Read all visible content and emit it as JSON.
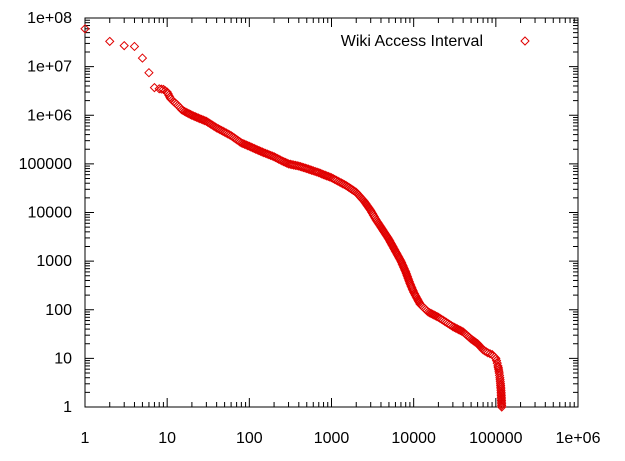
{
  "chart_data": {
    "type": "scatter",
    "title": "",
    "xlabel": "",
    "ylabel": "",
    "xscale": "log",
    "yscale": "log",
    "xlim": [
      1,
      1000000
    ],
    "ylim": [
      1,
      100000000
    ],
    "grid": false,
    "legend_position": "top-right",
    "x_ticks": [
      {
        "value": 1,
        "label": "1"
      },
      {
        "value": 10,
        "label": "10"
      },
      {
        "value": 100,
        "label": "100"
      },
      {
        "value": 1000,
        "label": "1000"
      },
      {
        "value": 10000,
        "label": "10000"
      },
      {
        "value": 100000,
        "label": "100000"
      },
      {
        "value": 1000000,
        "label": "1e+06"
      }
    ],
    "y_ticks": [
      {
        "value": 1,
        "label": "1"
      },
      {
        "value": 10,
        "label": "10"
      },
      {
        "value": 100,
        "label": "100"
      },
      {
        "value": 1000,
        "label": "1000"
      },
      {
        "value": 10000,
        "label": "10000"
      },
      {
        "value": 100000,
        "label": "100000"
      },
      {
        "value": 1000000,
        "label": "1e+06"
      },
      {
        "value": 10000000,
        "label": "1e+07"
      },
      {
        "value": 100000000,
        "label": "1e+08"
      }
    ],
    "series": [
      {
        "name": "Wiki Access Interval",
        "marker": "diamond-open",
        "color": "#e00000",
        "points": [
          [
            1,
            60000000
          ],
          [
            2,
            33000000
          ],
          [
            3,
            27000000
          ],
          [
            4,
            26000000
          ],
          [
            5,
            15000000
          ],
          [
            6,
            7500000
          ],
          [
            7,
            3700000
          ],
          [
            8,
            3500000
          ],
          [
            9,
            3400000
          ],
          [
            10,
            3000000
          ],
          [
            11,
            2200000
          ],
          [
            12,
            1900000
          ],
          [
            13,
            1700000
          ],
          [
            14,
            1500000
          ],
          [
            15,
            1300000
          ],
          [
            17,
            1150000
          ],
          [
            20,
            1000000
          ],
          [
            25,
            850000
          ],
          [
            30,
            750000
          ],
          [
            40,
            550000
          ],
          [
            50,
            450000
          ],
          [
            60,
            380000
          ],
          [
            80,
            270000
          ],
          [
            100,
            230000
          ],
          [
            120,
            200000
          ],
          [
            150,
            170000
          ],
          [
            200,
            140000
          ],
          [
            250,
            115000
          ],
          [
            300,
            100000
          ],
          [
            400,
            90000
          ],
          [
            500,
            80000
          ],
          [
            600,
            72000
          ],
          [
            700,
            66000
          ],
          [
            800,
            60000
          ],
          [
            1000,
            52000
          ],
          [
            1200,
            44000
          ],
          [
            1500,
            36000
          ],
          [
            2000,
            26000
          ],
          [
            2500,
            17000
          ],
          [
            3000,
            11000
          ],
          [
            3500,
            7000
          ],
          [
            4000,
            5000
          ],
          [
            5000,
            2800
          ],
          [
            6000,
            1600
          ],
          [
            7000,
            1000
          ],
          [
            8000,
            600
          ],
          [
            9000,
            350
          ],
          [
            10000,
            230
          ],
          [
            11000,
            170
          ],
          [
            12000,
            130
          ],
          [
            15000,
            90
          ],
          [
            20000,
            70
          ],
          [
            25000,
            55
          ],
          [
            30000,
            45
          ],
          [
            40000,
            35
          ],
          [
            50000,
            25
          ],
          [
            60000,
            20
          ],
          [
            70000,
            15
          ],
          [
            80000,
            13
          ],
          [
            90000,
            12
          ],
          [
            100000,
            10
          ],
          [
            102000,
            9
          ],
          [
            104000,
            8
          ],
          [
            106000,
            7
          ],
          [
            108000,
            6
          ],
          [
            110000,
            5
          ],
          [
            112000,
            4
          ],
          [
            114000,
            3
          ],
          [
            116000,
            2
          ],
          [
            118000,
            1
          ]
        ]
      }
    ]
  }
}
